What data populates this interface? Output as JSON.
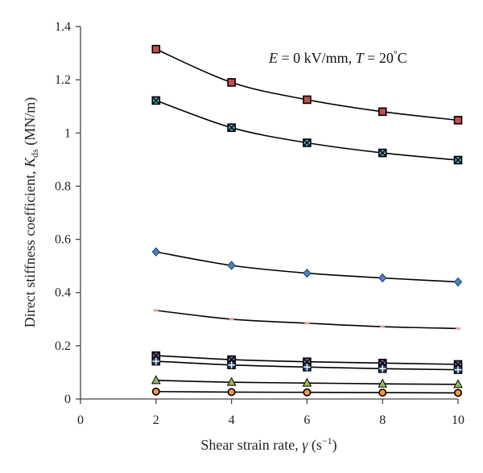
{
  "chart_data": {
    "type": "scatter",
    "xlabel": {
      "main": "Shear strain rate, ",
      "var": "γ",
      "unit": " (s",
      "exp": "−1",
      "close": ")"
    },
    "ylabel": {
      "main": "Direct stiffness coefficient, ",
      "var": "K",
      "sub": "ds",
      "unit": " (MN/m)"
    },
    "annotation": {
      "e_var": "E",
      "e_text": " = 0 kV/mm, ",
      "t_var": "T",
      "t_text": " = 20",
      "deg": "°",
      "unit": "C"
    },
    "xlim": [
      0,
      10
    ],
    "ylim": [
      0,
      1.4
    ],
    "x_ticks": [
      "0",
      "2",
      "4",
      "6",
      "8",
      "10"
    ],
    "y_ticks": [
      "0",
      "0.2",
      "0.4",
      "0.6",
      "0.8",
      "1",
      "1.2",
      "1.4"
    ],
    "grid": false,
    "x": [
      2,
      4,
      6,
      8,
      10
    ],
    "series": [
      {
        "values": [
          1.315,
          1.19,
          1.125,
          1.08,
          1.048
        ],
        "marker": "square",
        "color": "#c0504d",
        "edge": "#000000"
      },
      {
        "values": [
          1.122,
          1.02,
          0.963,
          0.925,
          0.898
        ],
        "marker": "square-x",
        "color": "#4bacc6",
        "edge": "#000000"
      },
      {
        "values": [
          0.553,
          0.502,
          0.473,
          0.455,
          0.44
        ],
        "marker": "diamond",
        "color": "#4f81bd",
        "edge": "#1f3f6f"
      },
      {
        "values": [
          0.333,
          0.3,
          0.285,
          0.272,
          0.265
        ],
        "marker": "dash",
        "color": "#e6a0a0",
        "edge": "#e6a0a0"
      },
      {
        "values": [
          0.163,
          0.148,
          0.14,
          0.135,
          0.13
        ],
        "marker": "square-x",
        "color": "#8064a2",
        "edge": "#000000"
      },
      {
        "values": [
          0.142,
          0.128,
          0.12,
          0.114,
          0.11
        ],
        "marker": "plus-square",
        "color": "#1f497d",
        "edge": "#000000"
      },
      {
        "values": [
          0.07,
          0.063,
          0.06,
          0.057,
          0.055
        ],
        "marker": "triangle",
        "color": "#9bbb59",
        "edge": "#000000"
      },
      {
        "values": [
          0.028,
          0.026,
          0.025,
          0.024,
          0.023
        ],
        "marker": "circle",
        "color": "#f79646",
        "edge": "#000000"
      }
    ]
  }
}
